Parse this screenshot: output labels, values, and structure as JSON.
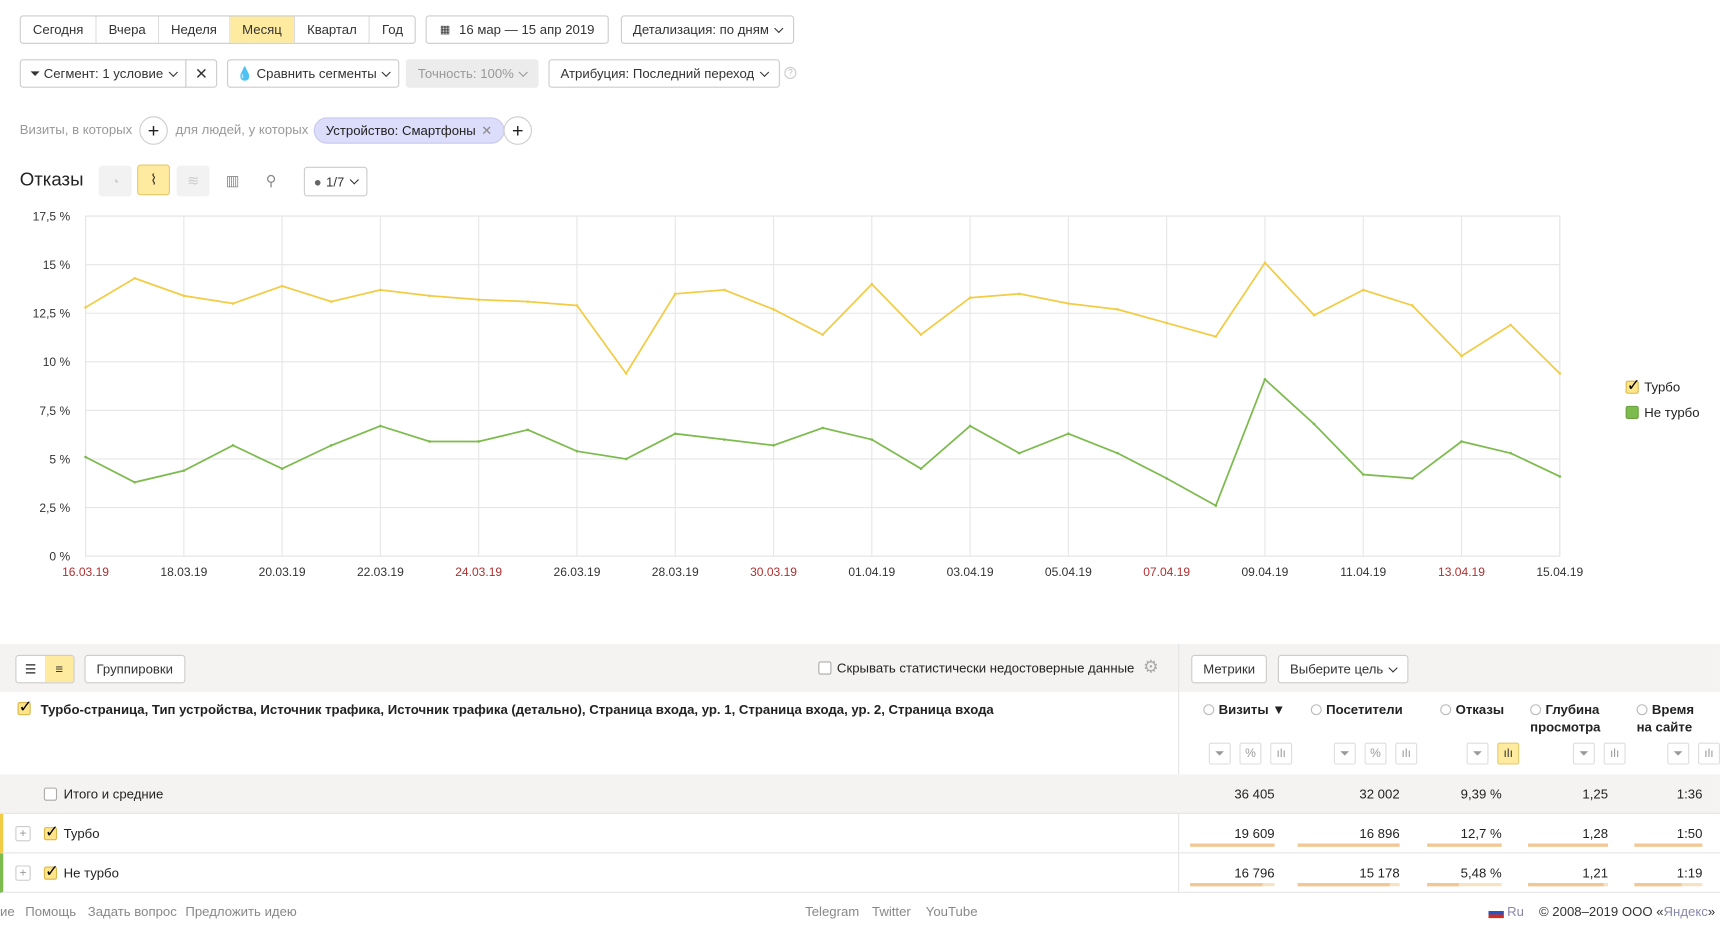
{
  "period_tabs": [
    "Сегодня",
    "Вчера",
    "Неделя",
    "Месяц",
    "Квартал",
    "Год"
  ],
  "active_period": "Месяц",
  "date_range": "16 мар — 15 апр 2019",
  "detail": "Детализация: по дням",
  "segment": "Сегмент: 1 условие",
  "compare": "Сравнить сегменты",
  "accuracy": "Точность: 100%",
  "attribution": "Атрибуция: Последний переход",
  "filter": {
    "visits_label": "Визиты, в которых",
    "people_label": "для людей, у которых",
    "chip": "Устройство: Смартфоны"
  },
  "chart_title": "Отказы",
  "series_counter": "1/7",
  "chart_data": {
    "type": "line",
    "x": [
      "16.03.19",
      "17.03.19",
      "18.03.19",
      "19.03.19",
      "20.03.19",
      "21.03.19",
      "22.03.19",
      "23.03.19",
      "24.03.19",
      "25.03.19",
      "26.03.19",
      "27.03.19",
      "28.03.19",
      "29.03.19",
      "30.03.19",
      "31.03.19",
      "01.04.19",
      "02.04.19",
      "03.04.19",
      "04.04.19",
      "05.04.19",
      "06.04.19",
      "07.04.19",
      "08.04.19",
      "09.04.19",
      "10.04.19",
      "11.04.19",
      "12.04.19",
      "13.04.19",
      "14.04.19",
      "15.04.19"
    ],
    "x_tick_labels": [
      "16.03.19",
      "18.03.19",
      "20.03.19",
      "22.03.19",
      "24.03.19",
      "26.03.19",
      "28.03.19",
      "30.03.19",
      "01.04.19",
      "03.04.19",
      "05.04.19",
      "07.04.19",
      "09.04.19",
      "11.04.19",
      "13.04.19",
      "15.04.19"
    ],
    "weekend_ticks": [
      "16.03.19",
      "24.03.19",
      "30.03.19",
      "07.04.19",
      "13.04.19"
    ],
    "y_tick_labels": [
      "0 %",
      "2,5 %",
      "5 %",
      "7,5 %",
      "10 %",
      "12,5 %",
      "15 %",
      "17,5 %"
    ],
    "ylim": [
      0,
      17.5
    ],
    "grid": true,
    "legend_position": "right",
    "series": [
      {
        "name": "Турбо",
        "color": "#f2cc45",
        "values": [
          12.8,
          14.3,
          13.4,
          13.0,
          13.9,
          13.1,
          13.7,
          13.4,
          13.2,
          13.1,
          12.9,
          9.4,
          13.5,
          13.7,
          12.7,
          11.4,
          14.0,
          11.4,
          13.3,
          13.5,
          13.0,
          12.7,
          12.0,
          11.3,
          15.1,
          12.4,
          13.7,
          12.9,
          10.3,
          11.9,
          9.4
        ]
      },
      {
        "name": "Не турбо",
        "color": "#7dbb4e",
        "values": [
          5.1,
          3.8,
          4.4,
          5.7,
          4.5,
          5.7,
          6.7,
          5.9,
          5.9,
          6.5,
          5.4,
          5.0,
          6.3,
          6.0,
          5.7,
          6.6,
          6.0,
          4.5,
          6.7,
          5.3,
          6.3,
          5.3,
          4.0,
          2.6,
          9.1,
          6.8,
          4.2,
          4.0,
          5.9,
          5.3,
          4.1
        ]
      }
    ]
  },
  "toolbar": {
    "groupings": "Группировки",
    "hide_unreliable": "Скрывать статистически недостоверные данные",
    "metrics": "Метрики",
    "goal": "Выберите цель"
  },
  "table": {
    "dimensions": "Турбо-страница, Тип устройства, Источник трафика, Источник трафика (детально), Страница входа, ур. 1, Страница входа, ур. 2, Страница входа",
    "columns": [
      {
        "l1": "Визиты ▼",
        "l2": ""
      },
      {
        "l1": "Посетители",
        "l2": ""
      },
      {
        "l1": "Отказы",
        "l2": ""
      },
      {
        "l1": "Глубина",
        "l2": "просмотра"
      },
      {
        "l1": "Время",
        "l2": "на сайте"
      }
    ],
    "total": {
      "label": "Итого и средние",
      "values": [
        "36 405",
        "32 002",
        "9,39 %",
        "1,25",
        "1:36"
      ]
    },
    "rows": [
      {
        "label": "Турбо",
        "color": "#f2cc45",
        "values": [
          "19 609",
          "16 896",
          "12,7 %",
          "1,28",
          "1:50"
        ],
        "fill": [
          1,
          1,
          1,
          1,
          1
        ]
      },
      {
        "label": "Не турбо",
        "color": "#7dbb4e",
        "values": [
          "16 796",
          "15 178",
          "5,48 %",
          "1,21",
          "1:19"
        ],
        "fill": [
          0.86,
          0.9,
          0.43,
          0.95,
          0.7
        ]
      }
    ]
  },
  "footer": {
    "left": [
      "ие",
      "Помощь",
      "Задать вопрос",
      "Предложить идею"
    ],
    "social": [
      "Telegram",
      "Twitter",
      "YouTube"
    ],
    "lang": "Ru",
    "copyright": "© 2008–2019 ООО «",
    "brand": "Яндекс",
    "copy_end": "»"
  }
}
